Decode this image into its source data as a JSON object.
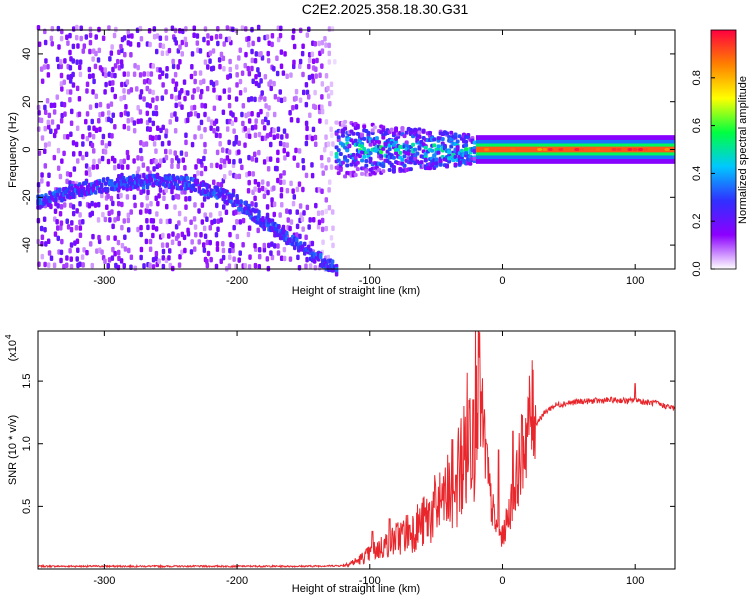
{
  "title": "C2E2.2025.358.18.30.G31",
  "chart_data": [
    {
      "type": "heatmap",
      "xlabel": "Height of straight line (km)",
      "ylabel": "Frequency (Hz)",
      "xlim": [
        -350,
        130
      ],
      "ylim": [
        -50,
        50
      ],
      "x_ticks": [
        -300,
        -200,
        -100,
        0,
        100
      ],
      "y_ticks": [
        -40,
        -20,
        0,
        20,
        40
      ],
      "colorbar": {
        "label": "Normalized spectral amplitude",
        "range": [
          0,
          1
        ],
        "ticks": [
          0,
          0.2,
          0.4,
          0.6,
          0.8
        ],
        "tick_labels": [
          "0.0",
          "0.2",
          "0.4",
          "0.6",
          "0.8"
        ],
        "colormap": [
          "#ffffff",
          "#8c00ff",
          "#3030ff",
          "#00c8ff",
          "#00ff40",
          "#ffff00",
          "#ff8000",
          "#ff0040"
        ]
      },
      "features": {
        "noise_region_x": [
          -350,
          -125
        ],
        "noise_amplitude": 0.15,
        "curved_track": {
          "x": [
            -350,
            -320,
            -290,
            -260,
            -240,
            -220,
            -200,
            -180,
            -160,
            -140,
            -125
          ],
          "y": [
            -22,
            -17,
            -14,
            -13,
            -14,
            -17,
            -22,
            -30,
            -38,
            -45,
            -50
          ],
          "amplitude": 0.3
        },
        "scatter_band": {
          "x": [
            -125,
            -20
          ],
          "y_center": 0,
          "y_half_width": 12,
          "amplitude": 0.45
        },
        "carrier_line": {
          "x": [
            -20,
            130
          ],
          "y": 0,
          "amplitude": 0.9
        }
      }
    },
    {
      "type": "line",
      "xlabel": "Height of straight line (km)",
      "ylabel": "SNR (10 * v/v)",
      "y_scale_label": "(x10",
      "y_scale_exponent": "4",
      "xlim": [
        -350,
        130
      ],
      "ylim": [
        0,
        19000
      ],
      "x_ticks": [
        -300,
        -200,
        -100,
        0,
        100
      ],
      "y_ticks": [
        5000,
        10000,
        15000
      ],
      "y_tick_labels": [
        "0.5",
        "1.0",
        "1.5"
      ],
      "line_color": "#e8262b",
      "series": [
        {
          "x": [
            -350,
            -300,
            -250,
            -200,
            -150,
            -120,
            -110,
            -100,
            -90,
            -80,
            -70,
            -60,
            -50,
            -40,
            -35,
            -30,
            -25,
            -20,
            -18,
            -15,
            -12,
            -10,
            -5,
            0,
            5,
            10,
            15,
            20,
            25,
            30,
            35,
            40,
            50,
            60,
            70,
            80,
            90,
            95,
            100,
            105,
            110,
            115,
            120,
            125,
            130
          ],
          "y": [
            200,
            200,
            200,
            200,
            200,
            250,
            500,
            1000,
            1500,
            2000,
            2500,
            3000,
            4000,
            5000,
            6000,
            7000,
            9000,
            11000,
            13500,
            10000,
            8000,
            5500,
            3000,
            2200,
            4000,
            6000,
            8500,
            10500,
            11500,
            12200,
            12700,
            13000,
            13200,
            13300,
            13350,
            13400,
            13400,
            13300,
            13500,
            13300,
            13200,
            13200,
            13000,
            12900,
            12700
          ],
          "spikes": [
            {
              "x": -18,
              "y": 19000
            },
            {
              "x": -22,
              "y": 13500
            },
            {
              "x": -35,
              "y": 7500
            },
            {
              "x": -45,
              "y": 5500
            },
            {
              "x": -70,
              "y": 3500
            },
            {
              "x": -85,
              "y": 4000
            },
            {
              "x": -98,
              "y": 3000
            },
            {
              "x": -12,
              "y": 10000
            },
            {
              "x": -3,
              "y": 9500
            },
            {
              "x": 8,
              "y": 11000
            },
            {
              "x": 100,
              "y": 14800
            }
          ]
        }
      ]
    }
  ]
}
